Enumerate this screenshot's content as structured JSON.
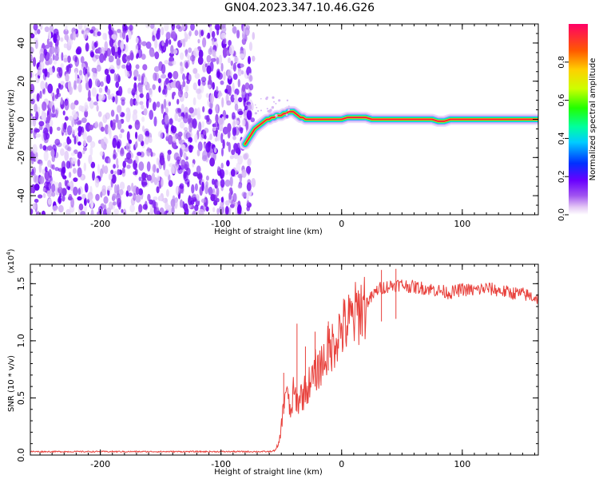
{
  "figure": {
    "title": "GN04.2023.347.10.46.G26"
  },
  "chart_data": [
    {
      "type": "heatmap",
      "xlabel": "Height of straight line (km)",
      "ylabel": "Frequency (Hz)",
      "xlim": [
        -258,
        163
      ],
      "ylim": [
        -50,
        50
      ],
      "xticks": [
        -200,
        -100,
        0,
        100
      ],
      "yticks": [
        -40,
        -20,
        0,
        20,
        40
      ],
      "grid": false,
      "colorbar": {
        "label": "Normalized spectral amplitude",
        "ticks": [
          "0.0",
          "0.2",
          "0.4",
          "0.6",
          "0.8"
        ],
        "range": [
          0,
          1
        ]
      },
      "description_trace": {
        "noise_region_x": [
          -258,
          -73
        ],
        "signal_x": [
          -80,
          -78,
          -76,
          -74,
          -72,
          -70,
          -68,
          -66,
          -64,
          -62,
          -60,
          -58,
          -56,
          -54,
          -52,
          -50,
          -48,
          -46,
          -44,
          -42,
          -40,
          -38,
          -36,
          -34,
          -32,
          -30,
          -28,
          -26,
          -24,
          -22,
          -20,
          -15,
          -10,
          -5,
          0,
          5,
          10,
          15,
          20,
          25,
          30,
          40,
          50,
          60,
          70,
          75,
          80,
          85,
          90,
          95,
          100,
          110,
          120,
          130,
          140,
          150,
          163
        ],
        "signal_y": [
          -13,
          -11,
          -9,
          -7,
          -5,
          -4,
          -3,
          -2,
          -1,
          0,
          0,
          1,
          1,
          2,
          2,
          2,
          3,
          3,
          4,
          4,
          4,
          3,
          2,
          1,
          1,
          0,
          0,
          0,
          0,
          0,
          0,
          0,
          0,
          0,
          0,
          1,
          1,
          1,
          1,
          0,
          0,
          0,
          0,
          0,
          0,
          0,
          -1,
          -1,
          0,
          0,
          0,
          0,
          0,
          0,
          0,
          0,
          0
        ]
      }
    },
    {
      "type": "line",
      "xlabel": "Height of straight line (km)",
      "ylabel": "SNR (10 * v/v)",
      "multiplier": "(x10",
      "multiplier_exp": "4",
      "multiplier_close": ")",
      "xlim": [
        -258,
        163
      ],
      "ylim": [
        0,
        1.67
      ],
      "xticks": [
        -200,
        -100,
        0,
        100
      ],
      "yticks": [
        "0.0",
        "0.5",
        "1.0",
        "1.5"
      ],
      "grid": false,
      "series": [
        {
          "color": "#e8413c",
          "x": [
            -258,
            -200,
            -150,
            -100,
            -60,
            -55,
            -52,
            -50,
            -48,
            -46,
            -44,
            -42,
            -40,
            -38,
            -36,
            -34,
            -32,
            -30,
            -28,
            -26,
            -24,
            -22,
            -20,
            -18,
            -16,
            -14,
            -12,
            -10,
            -8,
            -6,
            -4,
            -2,
            0,
            5,
            10,
            15,
            20,
            25,
            30,
            35,
            40,
            45,
            50,
            60,
            70,
            80,
            90,
            100,
            110,
            120,
            130,
            140,
            150,
            160,
            163
          ],
          "y": [
            0.03,
            0.03,
            0.03,
            0.03,
            0.03,
            0.04,
            0.1,
            0.25,
            0.45,
            0.6,
            0.45,
            0.35,
            0.55,
            0.5,
            0.45,
            0.55,
            0.5,
            0.6,
            0.55,
            0.7,
            0.65,
            0.75,
            0.7,
            0.8,
            0.8,
            0.85,
            0.9,
            0.95,
            0.95,
            1.0,
            1.05,
            1.08,
            1.1,
            1.15,
            1.2,
            1.28,
            1.33,
            1.38,
            1.45,
            1.47,
            1.48,
            1.49,
            1.49,
            1.47,
            1.46,
            1.44,
            1.42,
            1.45,
            1.44,
            1.46,
            1.44,
            1.42,
            1.41,
            1.38,
            1.37
          ]
        }
      ],
      "peaks": {
        "x": [
          -48,
          -37,
          -30,
          -22,
          -11,
          33,
          45
        ],
        "y": [
          0.72,
          1.15,
          0.95,
          1.08,
          1.17,
          1.62,
          1.63
        ]
      }
    }
  ]
}
